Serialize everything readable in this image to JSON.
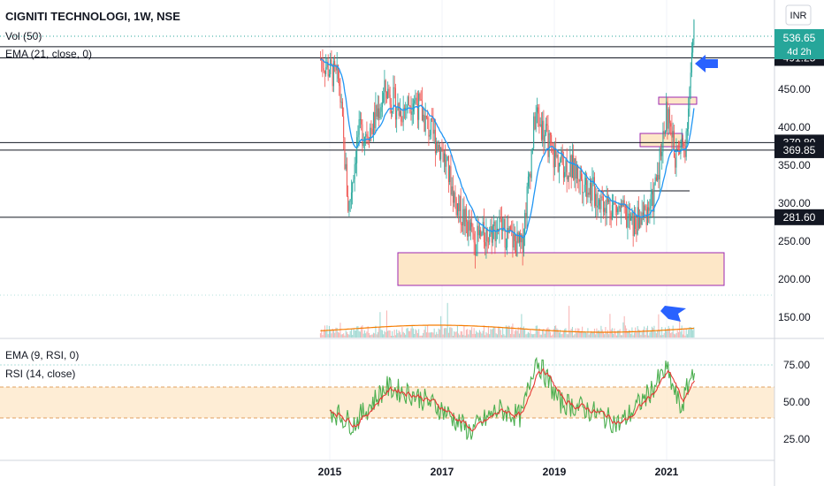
{
  "header": {
    "symbol_line": "CIGNITI TECHNOLOGI, 1W, NSE",
    "vol_label": "Vol (50)",
    "ema_label": "EMA (21, close, 0)",
    "currency": "INR"
  },
  "price_badges": {
    "last": "536.65",
    "countdown": "4d 2h"
  },
  "rsi_panel": {
    "ema_label": "EMA (9, RSI, 0)",
    "rsi_label": "RSI (14, close)",
    "ticks": [
      "75.00",
      "50.00",
      "25.00"
    ]
  },
  "x_axis": {
    "ticks": [
      "2015",
      "2017",
      "2019",
      "2021"
    ]
  },
  "price_axis": {
    "ticks": [
      "450.00",
      "400.00",
      "350.00",
      "300.00",
      "250.00",
      "200.00",
      "150.00"
    ]
  },
  "colors": {
    "up": "#26a69a",
    "down": "#ef5350",
    "ema": "#2196f3",
    "vol_ma": "#f57c00",
    "rsi": "#4caf50",
    "rsi_ema": "#e53935",
    "zone_fill": "#fde7c7",
    "zone_border": "#9c27b0",
    "arrow": "#2962ff"
  },
  "chart_data": {
    "type": "candlestick",
    "interval": "1W",
    "price_range": [
      120,
      560
    ],
    "horizontal_levels": [
      {
        "label": "506.00",
        "value": 506.0
      },
      {
        "label": "491.25",
        "value": 491.25
      },
      {
        "label": "379.80",
        "value": 379.8
      },
      {
        "label": "369.85",
        "value": 369.85
      },
      {
        "label": "281.60",
        "value": 281.6
      }
    ],
    "price_path": [
      {
        "t": "2014-11",
        "close": 490
      },
      {
        "t": "2015-03",
        "close": 460
      },
      {
        "t": "2015-05",
        "close": 290
      },
      {
        "t": "2015-07",
        "close": 390
      },
      {
        "t": "2015-10",
        "close": 400
      },
      {
        "t": "2016-01",
        "close": 450
      },
      {
        "t": "2016-04",
        "close": 420
      },
      {
        "t": "2016-07",
        "close": 440
      },
      {
        "t": "2016-10",
        "close": 400
      },
      {
        "t": "2017-01",
        "close": 370
      },
      {
        "t": "2017-04",
        "close": 300
      },
      {
        "t": "2017-08",
        "close": 250
      },
      {
        "t": "2018-01",
        "close": 270
      },
      {
        "t": "2018-06",
        "close": 240
      },
      {
        "t": "2018-09",
        "close": 420
      },
      {
        "t": "2019-01",
        "close": 360
      },
      {
        "t": "2019-06",
        "close": 340
      },
      {
        "t": "2019-10",
        "close": 310
      },
      {
        "t": "2020-03",
        "close": 290
      },
      {
        "t": "2020-06",
        "close": 270
      },
      {
        "t": "2020-10",
        "close": 300
      },
      {
        "t": "2021-01",
        "close": 420
      },
      {
        "t": "2021-03",
        "close": 360
      },
      {
        "t": "2021-05",
        "close": 380
      },
      {
        "t": "2021-07",
        "close": 536.65
      }
    ],
    "rsi_path": [
      {
        "t": "2015-01",
        "rsi": 45
      },
      {
        "t": "2015-06",
        "rsi": 35
      },
      {
        "t": "2016-01",
        "rsi": 60
      },
      {
        "t": "2016-07",
        "rsi": 55
      },
      {
        "t": "2017-01",
        "rsi": 45
      },
      {
        "t": "2017-07",
        "rsi": 30
      },
      {
        "t": "2018-01",
        "rsi": 45
      },
      {
        "t": "2018-06",
        "rsi": 40
      },
      {
        "t": "2018-09",
        "rsi": 80
      },
      {
        "t": "2019-02",
        "rsi": 50
      },
      {
        "t": "2019-08",
        "rsi": 45
      },
      {
        "t": "2020-03",
        "rsi": 35
      },
      {
        "t": "2020-09",
        "rsi": 55
      },
      {
        "t": "2021-01",
        "rsi": 72
      },
      {
        "t": "2021-04",
        "rsi": 45
      },
      {
        "t": "2021-07",
        "rsi": 75
      }
    ],
    "rsi_band": [
      40,
      60
    ],
    "rsi_ticks": [
      75,
      50,
      25
    ]
  }
}
